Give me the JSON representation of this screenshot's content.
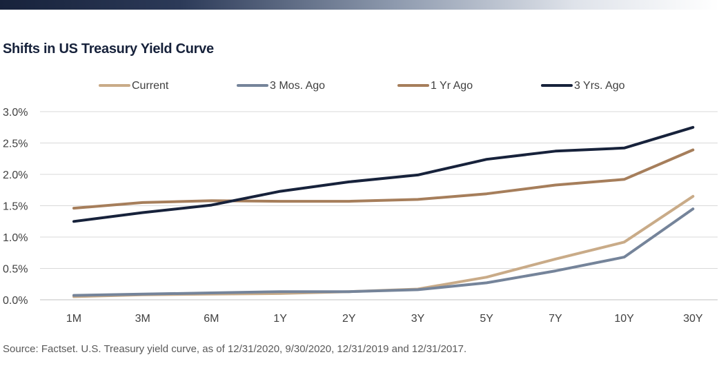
{
  "title": "Shifts in US Treasury Yield Curve",
  "source": "Source: Factset. U.S. Treasury yield curve, as of 12/31/2020, 9/30/2020, 12/31/2019 and 12/31/2017.",
  "chart_data": {
    "type": "line",
    "title": "Shifts in US Treasury Yield Curve",
    "xlabel": "",
    "ylabel": "",
    "categories": [
      "1M",
      "3M",
      "6M",
      "1Y",
      "2Y",
      "3Y",
      "5Y",
      "7Y",
      "10Y",
      "30Y"
    ],
    "ylim": [
      0,
      3.0
    ],
    "yticks": [
      0,
      0.5,
      1.0,
      1.5,
      2.0,
      2.5,
      3.0
    ],
    "ytick_labels": [
      "0.0%",
      "0.5%",
      "1.0%",
      "1.5%",
      "2.0%",
      "2.5%",
      "3.0%"
    ],
    "grid": true,
    "legend_position": "top",
    "series": [
      {
        "name": "Current",
        "color": "#c9ab88",
        "values": [
          0.05,
          0.08,
          0.09,
          0.1,
          0.13,
          0.17,
          0.36,
          0.65,
          0.92,
          1.65
        ]
      },
      {
        "name": "3 Mos. Ago",
        "color": "#75849a",
        "values": [
          0.07,
          0.09,
          0.11,
          0.13,
          0.13,
          0.16,
          0.27,
          0.46,
          0.68,
          1.45
        ]
      },
      {
        "name": "1 Yr Ago",
        "color": "#a67e5b",
        "values": [
          1.46,
          1.55,
          1.58,
          1.57,
          1.57,
          1.6,
          1.69,
          1.83,
          1.92,
          2.39
        ]
      },
      {
        "name": "3 Yrs. Ago",
        "color": "#17223b",
        "values": [
          1.25,
          1.39,
          1.51,
          1.73,
          1.88,
          1.99,
          2.24,
          2.37,
          2.42,
          2.75
        ]
      }
    ]
  }
}
